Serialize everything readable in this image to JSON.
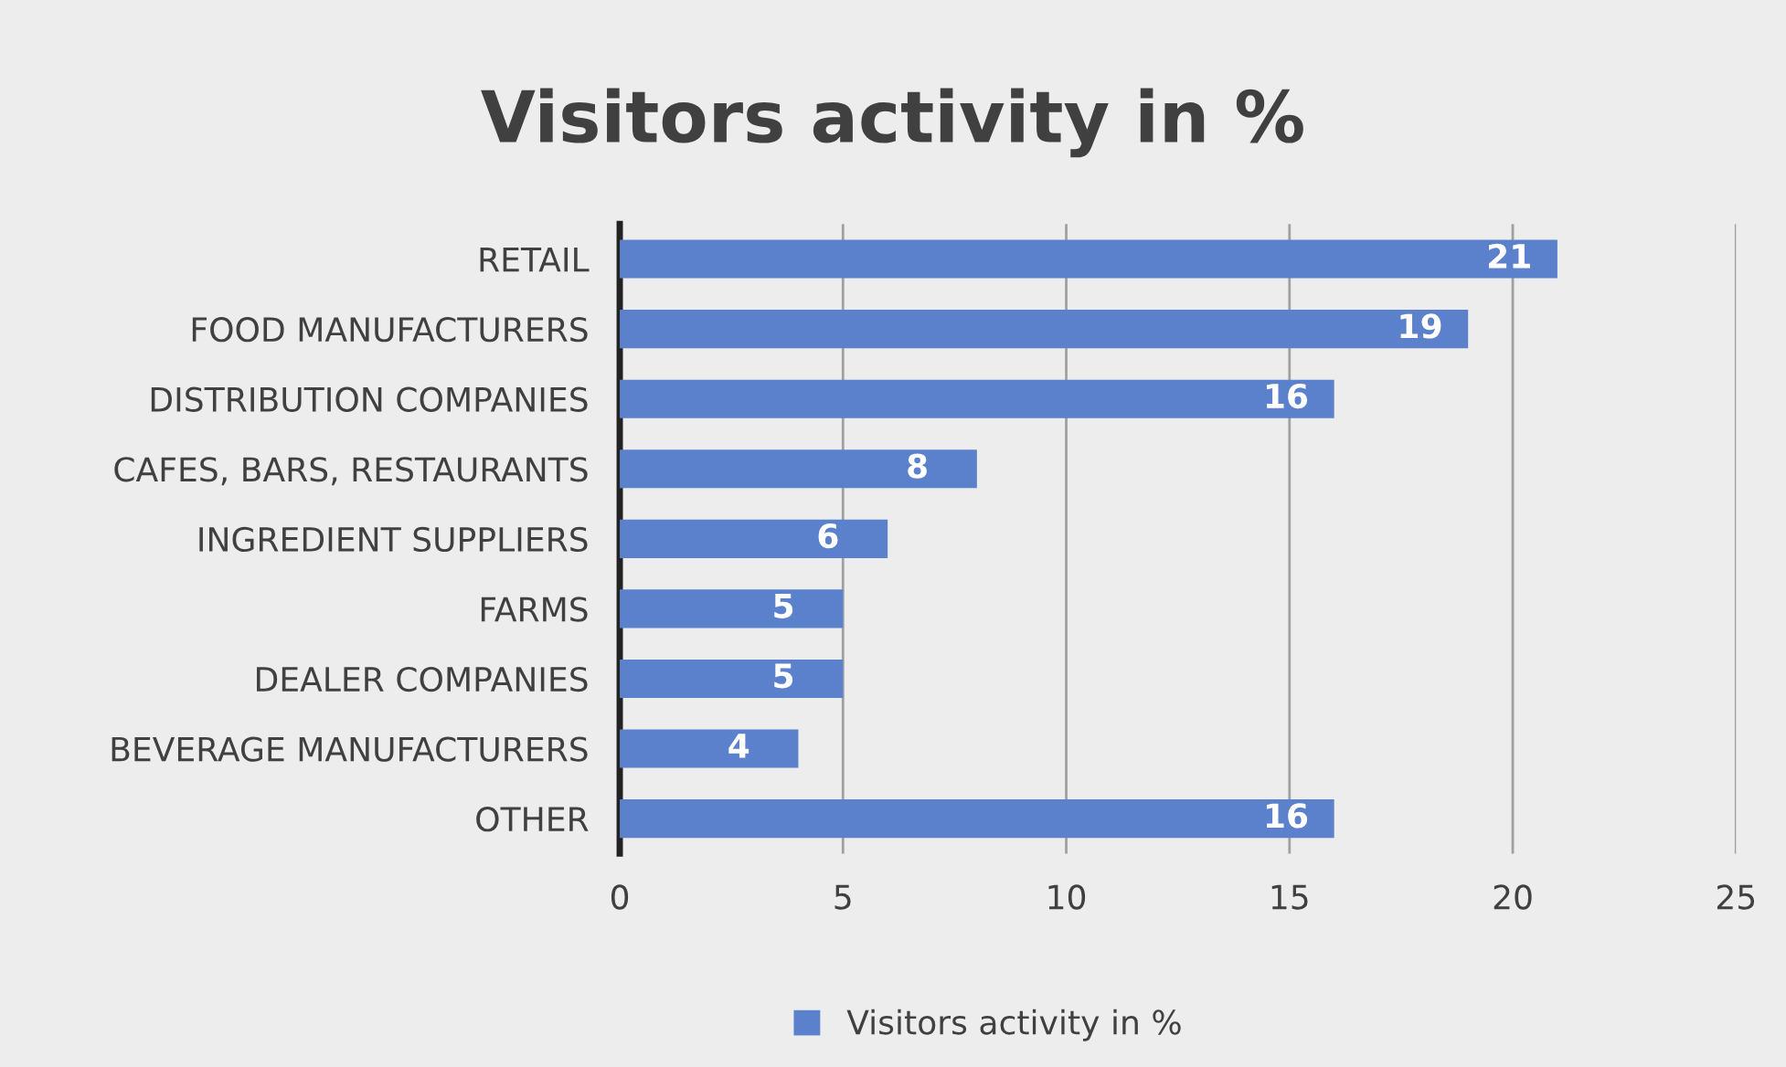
{
  "chart_data": {
    "type": "bar",
    "orientation": "horizontal",
    "title": "Visitors activity in %",
    "categories": [
      "RETAIL",
      "FOOD MANUFACTURERS",
      "DISTRIBUTION COMPANIES",
      "CAFES, BARS, RESTAURANTS",
      "INGREDIENT SUPPLIERS",
      "FARMS",
      "DEALER COMPANIES",
      "BEVERAGE MANUFACTURERS",
      "OTHER"
    ],
    "series": [
      {
        "name": "Visitors activity in %",
        "color": "#5b80cc",
        "values": [
          21,
          19,
          16,
          8,
          6,
          5,
          5,
          4,
          16
        ]
      }
    ],
    "xlim": [
      0,
      25
    ],
    "xticks": [
      0,
      5,
      10,
      15,
      20,
      25
    ],
    "grid": "x",
    "legend": "bottom",
    "data_labels": true
  }
}
